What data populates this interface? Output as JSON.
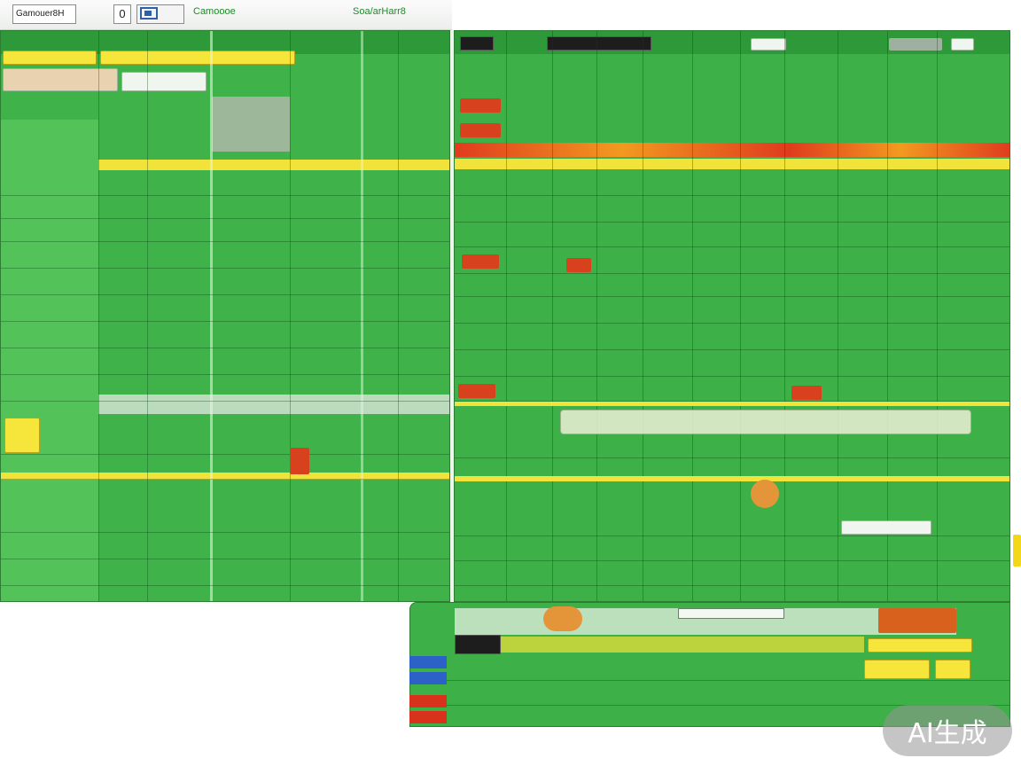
{
  "toolbar": {
    "app_name": "Gamouer8H",
    "digit_field": "0",
    "search_label": "Camoooe",
    "link_label": "Soa/arHarr8"
  },
  "watermark": {
    "text": "AI生成"
  },
  "colors": {
    "panel_green": "#3fb24a",
    "highlight_yellow": "#f2e33a",
    "alert_red": "#d8411d"
  }
}
